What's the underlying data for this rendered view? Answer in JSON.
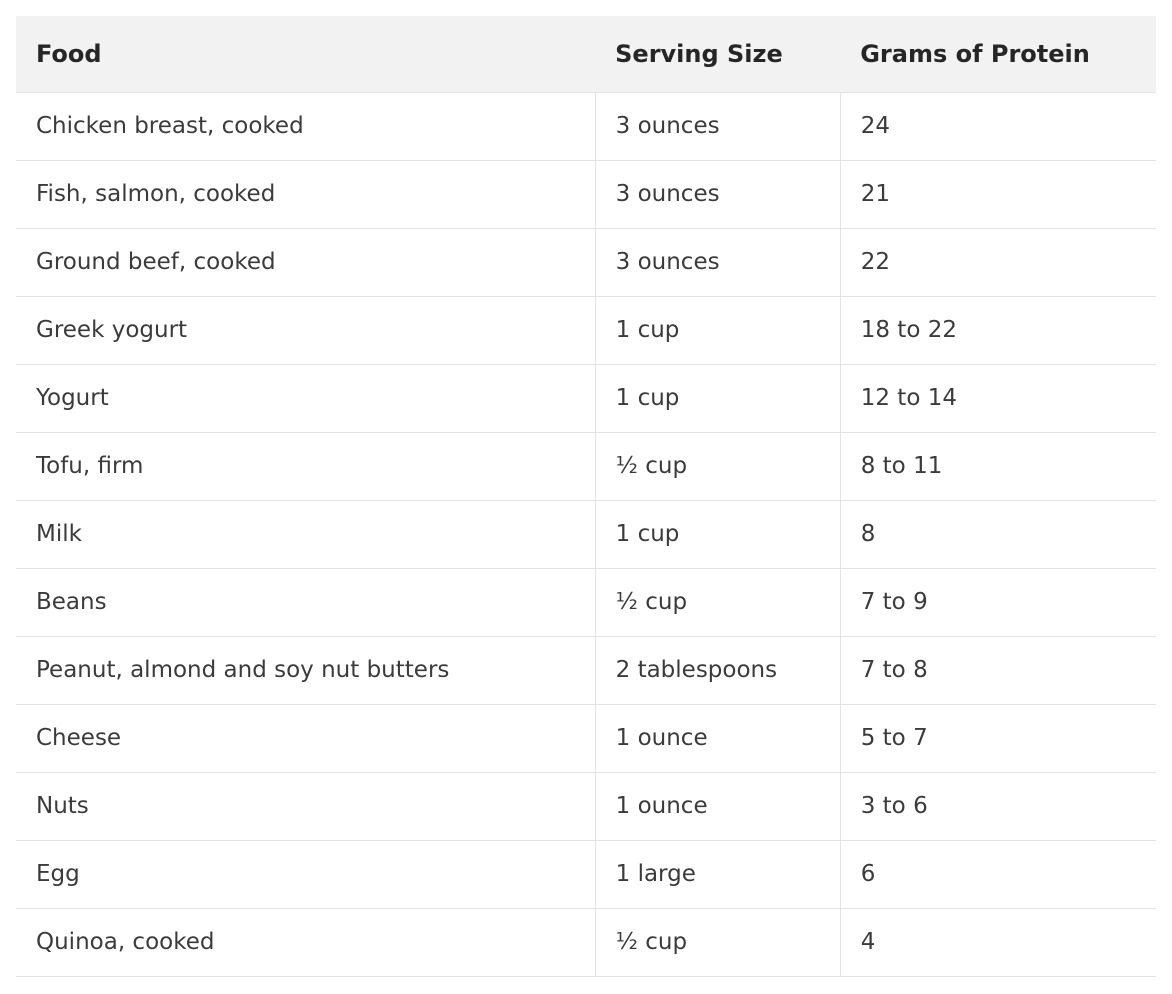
{
  "table": {
    "headers": [
      "Food",
      "Serving Size",
      "Grams of Protein"
    ],
    "rows": [
      {
        "food": "Chicken breast, cooked",
        "serving": "3 ounces",
        "protein": "24"
      },
      {
        "food": "Fish, salmon, cooked",
        "serving": "3 ounces",
        "protein": "21"
      },
      {
        "food": "Ground beef, cooked",
        "serving": "3 ounces",
        "protein": "22"
      },
      {
        "food": "Greek yogurt",
        "serving": "1 cup",
        "protein": "18 to 22"
      },
      {
        "food": "Yogurt",
        "serving": "1 cup",
        "protein": "12 to 14"
      },
      {
        "food": "Tofu, firm",
        "serving": "½ cup",
        "protein": "8 to 11"
      },
      {
        "food": "Milk",
        "serving": "1 cup",
        "protein": "8"
      },
      {
        "food": "Beans",
        "serving": "½ cup",
        "protein": "7 to 9"
      },
      {
        "food": "Peanut, almond and soy nut butters",
        "serving": "2 tablespoons",
        "protein": "7 to 8"
      },
      {
        "food": "Cheese",
        "serving": "1 ounce",
        "protein": "5 to 7"
      },
      {
        "food": "Nuts",
        "serving": "1 ounce",
        "protein": "3 to 6"
      },
      {
        "food": "Egg",
        "serving": "1 large",
        "protein": "6"
      },
      {
        "food": "Quinoa, cooked",
        "serving": "½ cup",
        "protein": "4"
      }
    ],
    "colors": {
      "header_bg": "#f2f2f2",
      "row_border": "#e3e3e3",
      "header_text": "#262626",
      "body_text": "#3b3b3b"
    }
  }
}
